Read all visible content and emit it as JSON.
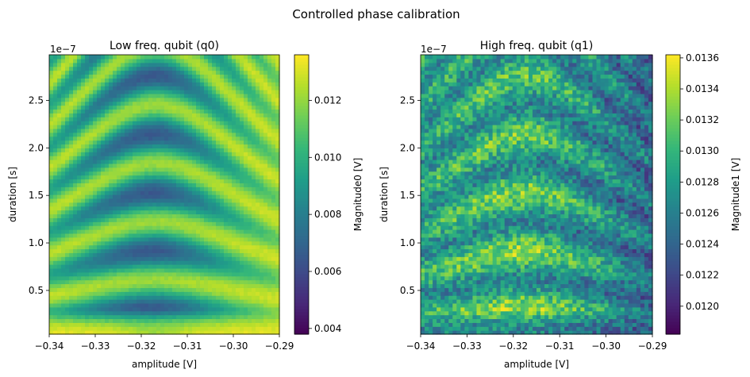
{
  "figure": {
    "suptitle": "Controlled phase calibration"
  },
  "chart_data": [
    {
      "type": "heatmap",
      "title": "Low freq. qubit (q0)",
      "xlabel": "amplitude [V]",
      "ylabel": "duration [s]",
      "y_offset_label": "1e−7",
      "x_range": [
        -0.34,
        -0.29
      ],
      "y_range": [
        0.04,
        2.98
      ],
      "x_ticks": [
        "−0.34",
        "−0.33",
        "−0.32",
        "−0.31",
        "−0.30",
        "−0.29"
      ],
      "x_tick_values": [
        -0.34,
        -0.33,
        -0.32,
        -0.31,
        -0.3,
        -0.29
      ],
      "y_ticks": [
        "0.5",
        "1.0",
        "1.5",
        "2.0",
        "2.5"
      ],
      "y_tick_values": [
        0.5,
        1.0,
        1.5,
        2.0,
        2.5
      ],
      "colorbar": {
        "label": "Magnitude0 [V]",
        "range": [
          0.0038,
          0.0136
        ],
        "ticks": [
          "0.004",
          "0.006",
          "0.008",
          "0.010",
          "0.012"
        ],
        "tick_values": [
          0.004,
          0.006,
          0.008,
          0.01,
          0.012
        ]
      },
      "colormap": "viridis",
      "noise": 0.02,
      "seed": 7
    },
    {
      "type": "heatmap",
      "title": "High freq. qubit (q1)",
      "xlabel": "amplitude [V]",
      "ylabel": "duration [s]",
      "y_offset_label": "1e−7",
      "x_range": [
        -0.34,
        -0.29
      ],
      "y_range": [
        0.04,
        2.98
      ],
      "x_ticks": [
        "−0.34",
        "−0.33",
        "−0.32",
        "−0.31",
        "−0.30",
        "−0.29"
      ],
      "x_tick_values": [
        -0.34,
        -0.33,
        -0.32,
        -0.31,
        -0.3,
        -0.29
      ],
      "y_ticks": [
        "0.5",
        "1.0",
        "1.5",
        "2.0",
        "2.5"
      ],
      "y_tick_values": [
        0.5,
        1.0,
        1.5,
        2.0,
        2.5
      ],
      "colorbar": {
        "label": "Magnitude1 [V]",
        "range": [
          0.01182,
          0.01362
        ],
        "ticks": [
          "0.0120",
          "0.0122",
          "0.0124",
          "0.0126",
          "0.0128",
          "0.0130",
          "0.0132",
          "0.0134",
          "0.0136"
        ],
        "tick_values": [
          0.012,
          0.0122,
          0.0124,
          0.0126,
          0.0128,
          0.013,
          0.0132,
          0.0134,
          0.0136
        ]
      },
      "colormap": "viridis",
      "noise": 0.17,
      "seed": 13
    }
  ]
}
